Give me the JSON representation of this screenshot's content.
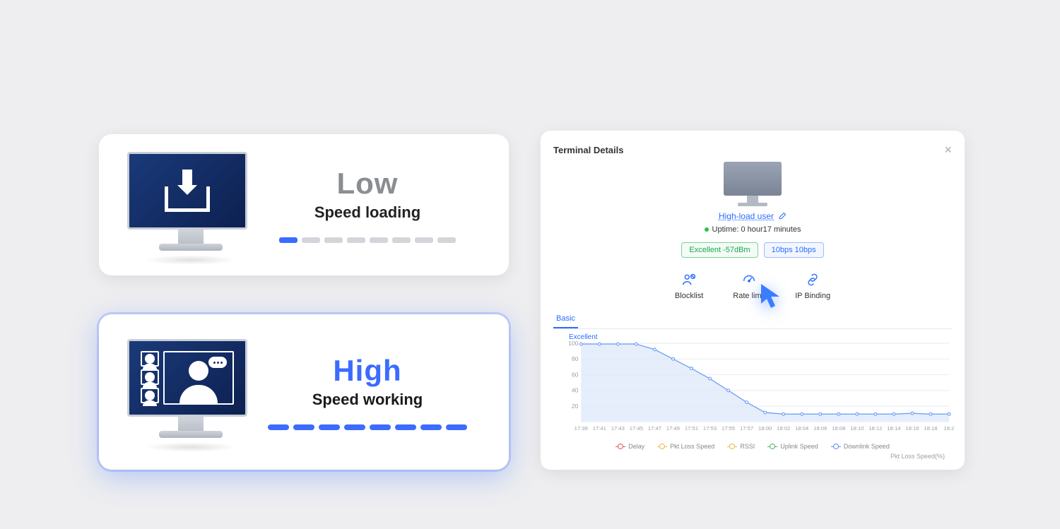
{
  "cards": {
    "low": {
      "title": "Low",
      "subtitle": "Speed loading",
      "title_color": "#8a8d92",
      "segments": 8,
      "active_segments": 1,
      "seg_active_color": "#3b6cff",
      "seg_inactive_color": "#d2d5da"
    },
    "high": {
      "title": "High",
      "subtitle": "Speed working",
      "title_color": "#3b6cff",
      "segments": 8,
      "seg_color": "#3b6cff"
    }
  },
  "panel": {
    "title": "Terminal Details",
    "device_name": "High-load user",
    "uptime": "Uptime: 0 hour17 minutes",
    "chip_signal": "Excellent -57dBm",
    "chip_speed": "10bps  10bps",
    "actions": {
      "blocklist": "Blocklist",
      "ratelimit": "Rate limit",
      "ipbinding": "IP Binding"
    },
    "tab": "Basic",
    "chart": {
      "quality_label": "Excellent",
      "y_ticks": [
        100,
        80,
        60,
        40,
        20
      ],
      "x_ticks": [
        "17:39",
        "17:41",
        "17:43",
        "17:45",
        "17:47",
        "17:49",
        "17:51",
        "17:53",
        "17:55",
        "17:57",
        "18:00",
        "18:02",
        "18:04",
        "18:06",
        "18:08",
        "18:10",
        "18:12",
        "18:14",
        "18:16",
        "18:18",
        "18:2"
      ],
      "series": [
        99,
        99,
        99,
        99,
        92,
        80,
        68,
        55,
        40,
        25,
        12,
        10,
        10,
        10,
        10,
        10,
        10,
        10,
        11,
        10,
        10
      ],
      "area_color": "#dce7fb",
      "line_color": "#6fa0f5",
      "ylim": [
        0,
        100
      ]
    },
    "legend": [
      {
        "label": "Delay",
        "color": "#e05a5a"
      },
      {
        "label": "Pkt Loss Speed",
        "color": "#e8b943"
      },
      {
        "label": "RSSI",
        "color": "#e8b943"
      },
      {
        "label": "Uplink Speed",
        "color": "#4fb56a"
      },
      {
        "label": "Downlink Speed",
        "color": "#5a8ef0"
      }
    ],
    "footer": "Pkt Loss Speed(%)"
  }
}
